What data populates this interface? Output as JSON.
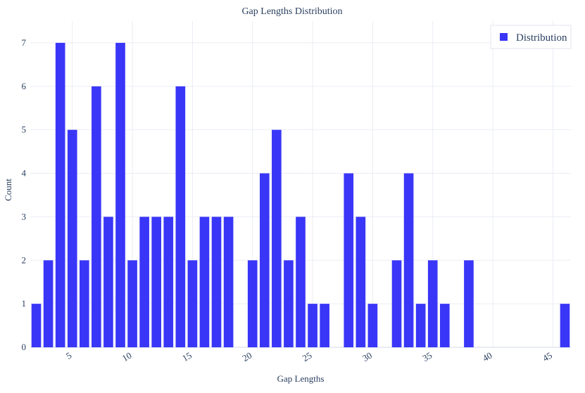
{
  "chart_data": {
    "type": "bar",
    "title": "Gap Lengths Distribution",
    "xlabel": "Gap Lengths",
    "ylabel": "Count",
    "x": [
      2,
      3,
      4,
      5,
      6,
      7,
      8,
      9,
      10,
      11,
      12,
      13,
      14,
      15,
      16,
      17,
      18,
      20,
      21,
      22,
      23,
      24,
      25,
      26,
      28,
      29,
      30,
      32,
      33,
      34,
      35,
      36,
      38,
      46
    ],
    "series": [
      {
        "name": "Distribution",
        "color": "#3a36f7",
        "values": [
          1,
          2,
          7,
          5,
          2,
          6,
          3,
          7,
          2,
          3,
          3,
          3,
          6,
          2,
          3,
          3,
          3,
          2,
          4,
          5,
          2,
          3,
          1,
          1,
          4,
          3,
          1,
          2,
          4,
          1,
          2,
          1,
          2,
          1
        ]
      }
    ],
    "xlim": [
      1.5,
      46.5
    ],
    "ylim": [
      0,
      7.5
    ],
    "xticks": [
      5,
      10,
      15,
      20,
      25,
      30,
      35,
      40,
      45
    ],
    "yticks": [
      0,
      1,
      2,
      3,
      4,
      5,
      6,
      7
    ],
    "grid": true,
    "legend_position": "top-right"
  }
}
